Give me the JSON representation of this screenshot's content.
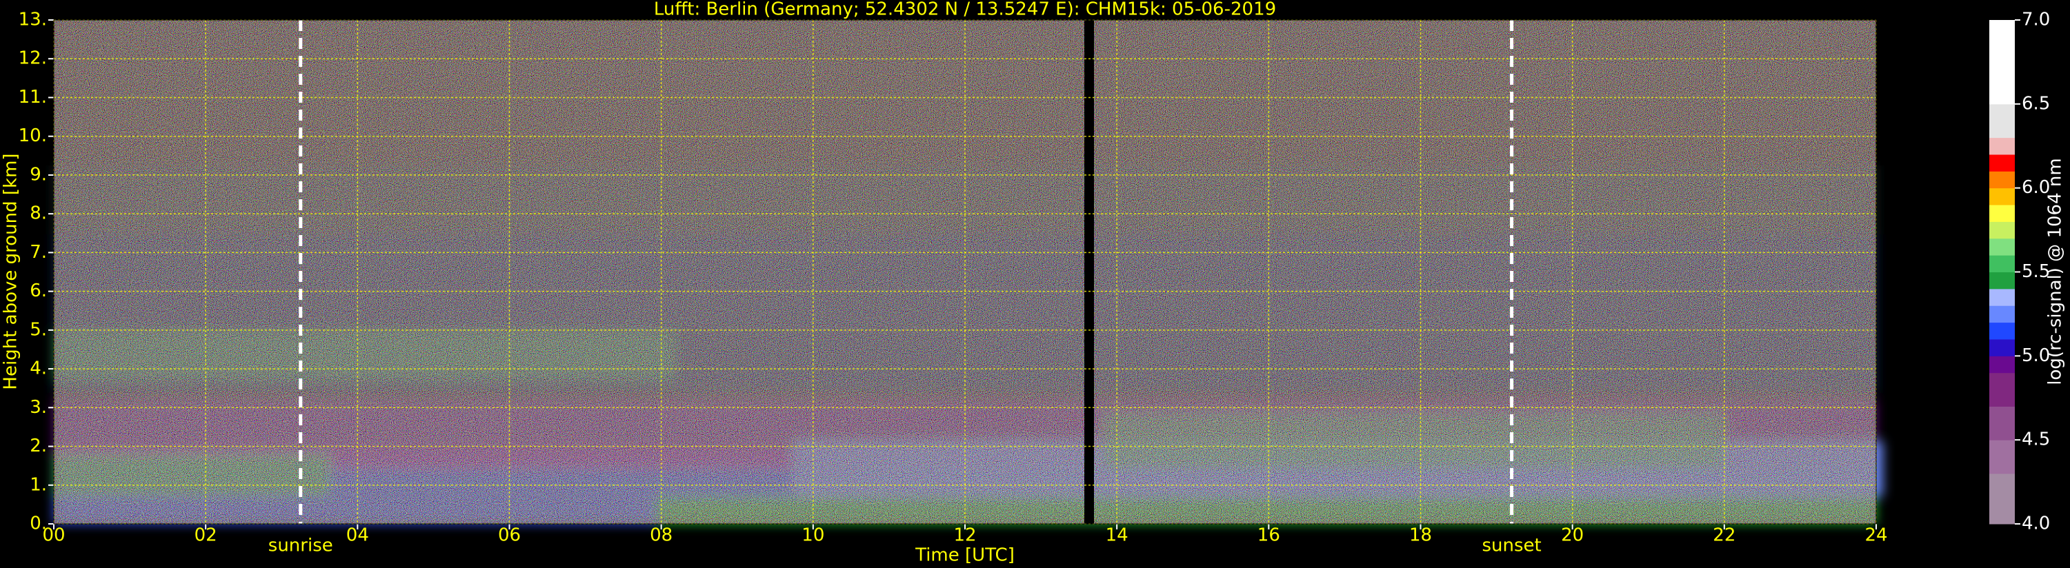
{
  "chart_data": {
    "type": "heatmap",
    "title": "Lufft: Berlin (Germany; 52.4302 N / 13.5247 E):    CHM15k: 05-06-2019",
    "x_label": "Time [UTC]",
    "y_label": "Height above ground [km]",
    "xlim": [
      0,
      24
    ],
    "ylim": [
      0,
      13
    ],
    "xticks": [
      {
        "value": 0,
        "label": "00"
      },
      {
        "value": 2,
        "label": "02"
      },
      {
        "value": 4,
        "label": "04"
      },
      {
        "value": 6,
        "label": "06"
      },
      {
        "value": 8,
        "label": "08"
      },
      10,
      12,
      14,
      16,
      18,
      20,
      22,
      24
    ],
    "yticks": [
      {
        "value": 0,
        "label": "0."
      },
      {
        "value": 1,
        "label": "1."
      },
      {
        "value": 2,
        "label": "2."
      },
      {
        "value": 3,
        "label": "3."
      },
      {
        "value": 4,
        "label": "4."
      },
      {
        "value": 5,
        "label": "5."
      },
      {
        "value": 6,
        "label": "6."
      },
      {
        "value": 7,
        "label": "7."
      },
      {
        "value": 8,
        "label": "8."
      },
      {
        "value": 9,
        "label": "9."
      },
      {
        "value": 10,
        "label": "10."
      },
      {
        "value": 11,
        "label": "11."
      },
      {
        "value": 12,
        "label": "12."
      },
      {
        "value": 13,
        "label": "13."
      }
    ],
    "grid": true,
    "grid_color": "#ffff00",
    "annotations": [
      {
        "text": "sunrise",
        "x": 3.25
      },
      {
        "text": "sunset",
        "x": 19.2
      }
    ],
    "colorbar": {
      "label": "log(rc-signal) @ 1064 nm",
      "lim": [
        4,
        7
      ],
      "ticks": [
        {
          "value": 4,
          "label": "4.0"
        },
        4.5,
        {
          "value": 5,
          "label": "5.0"
        },
        5.5,
        {
          "value": 6,
          "label": "6.0"
        },
        6.5,
        {
          "value": 7,
          "label": "7.0"
        }
      ],
      "colors": [
        "#a48ca4",
        "#a48ca4",
        "#a48ca4",
        "#a070a0",
        "#a070a0",
        "#905090",
        "#905090",
        "#802880",
        "#802880",
        "#6a0a90",
        "#2a10c8",
        "#2048ff",
        "#6888ff",
        "#a8b8ff",
        "#20a040",
        "#40c060",
        "#80e080",
        "#c8f060",
        "#ffff40",
        "#ffc000",
        "#ff8000",
        "#ff0000",
        "#f0b8b8",
        "#e4e4e4",
        "#e4e4e4",
        "#ffffff",
        "#ffffff",
        "#ffffff",
        "#ffffff",
        "#ffffff"
      ]
    }
  }
}
